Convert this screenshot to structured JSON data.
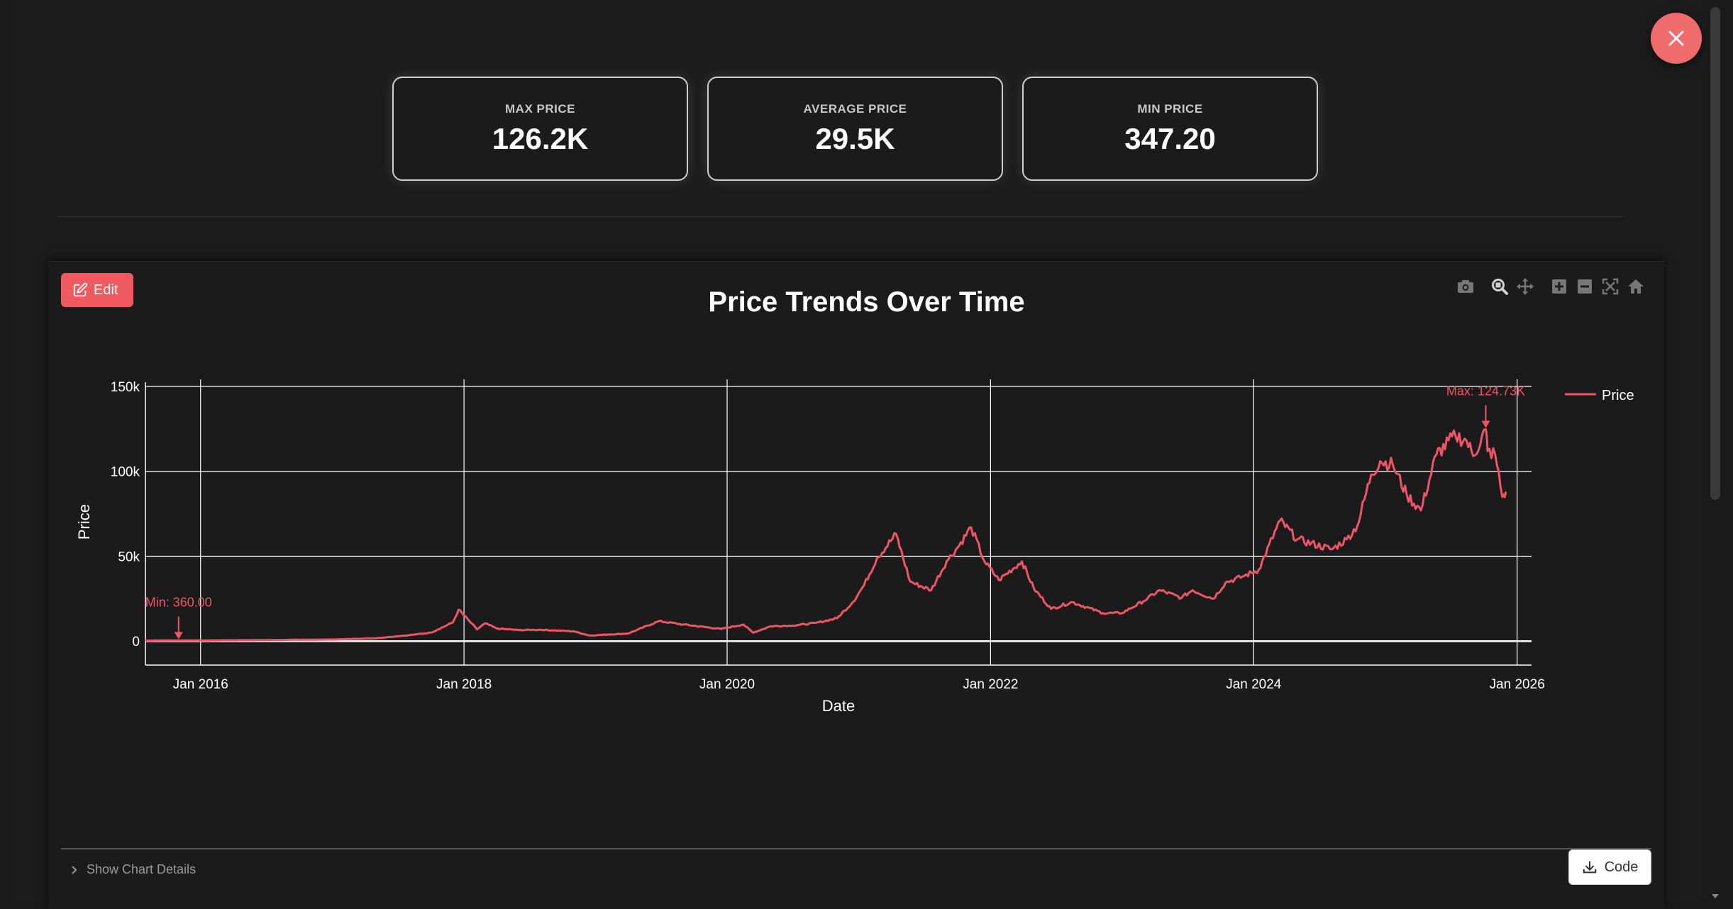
{
  "kpis": [
    {
      "label": "MAX PRICE",
      "value": "126.2K"
    },
    {
      "label": "AVERAGE PRICE",
      "value": "29.5K"
    },
    {
      "label": "MIN PRICE",
      "value": "347.20"
    }
  ],
  "edit_label": "Edit",
  "details_label": "Show Chart Details",
  "code_label": "Code",
  "icons": {
    "close": "close-icon",
    "edit": "edit-icon",
    "camera": "camera-icon",
    "zoom": "zoom-icon",
    "pan": "pan-icon",
    "zoom_in": "zoom-in-icon",
    "zoom_out": "zoom-out-icon",
    "autoscale": "autoscale-icon",
    "reset": "home-icon",
    "chevron": "chevron-right-icon",
    "download": "download-icon"
  },
  "colors": {
    "accent": "#f0595f",
    "line": "#f05468",
    "close": "#f06b6b"
  },
  "chart_data": {
    "type": "line",
    "title": "Price Trends Over Time",
    "xlabel": "Date",
    "ylabel": "Price",
    "xlim": [
      "2015-08-01",
      "2026-02-10"
    ],
    "ylim": [
      -7000,
      150000
    ],
    "x_ticks": [
      "Jan 2016",
      "Jan 2018",
      "Jan 2020",
      "Jan 2022",
      "Jan 2024",
      "Jan 2026"
    ],
    "y_ticks": [
      {
        "value": 0,
        "label": "0"
      },
      {
        "value": 50000,
        "label": "50k"
      },
      {
        "value": 100000,
        "label": "100k"
      },
      {
        "value": 150000,
        "label": "150k"
      }
    ],
    "grid": true,
    "legend_position": "top-right",
    "series": [
      {
        "name": "Price",
        "x": [
          "2015-08-01",
          "2015-10-01",
          "2016-01-01",
          "2016-06-01",
          "2017-01-01",
          "2017-05-01",
          "2017-08-01",
          "2017-10-01",
          "2017-12-01",
          "2017-12-17",
          "2018-01-15",
          "2018-02-06",
          "2018-03-01",
          "2018-04-01",
          "2018-06-01",
          "2018-08-01",
          "2018-11-01",
          "2018-12-15",
          "2019-04-01",
          "2019-06-26",
          "2019-09-01",
          "2019-12-15",
          "2020-02-15",
          "2020-03-13",
          "2020-05-01",
          "2020-07-01",
          "2020-09-01",
          "2020-11-01",
          "2020-12-15",
          "2021-01-15",
          "2021-02-20",
          "2021-04-14",
          "2021-05-23",
          "2021-07-20",
          "2021-09-01",
          "2021-10-01",
          "2021-11-08",
          "2021-12-15",
          "2022-01-24",
          "2022-03-29",
          "2022-05-01",
          "2022-06-18",
          "2022-08-15",
          "2022-11-09",
          "2022-12-31",
          "2023-03-01",
          "2023-04-15",
          "2023-06-15",
          "2023-07-15",
          "2023-09-11",
          "2023-10-15",
          "2023-12-01",
          "2024-01-15",
          "2024-03-14",
          "2024-05-01",
          "2024-08-05",
          "2024-09-15",
          "2024-10-15",
          "2024-11-22",
          "2024-12-17",
          "2025-01-21",
          "2025-03-01",
          "2025-04-09",
          "2025-05-22",
          "2025-07-14",
          "2025-08-14",
          "2025-09-01",
          "2025-10-06",
          "2025-10-11",
          "2025-11-01",
          "2025-11-21",
          "2025-12-01"
        ],
        "y": [
          360,
          400,
          430,
          600,
          950,
          1700,
          3500,
          5000,
          11000,
          18500,
          12000,
          7000,
          10500,
          7500,
          6500,
          6700,
          5800,
          3300,
          4500,
          11800,
          9800,
          7200,
          9800,
          5000,
          8800,
          9200,
          10600,
          13500,
          23000,
          33000,
          49000,
          63000,
          35000,
          30000,
          47000,
          55000,
          67000,
          47000,
          36000,
          47000,
          31000,
          19000,
          23000,
          16500,
          16500,
          23500,
          30000,
          25500,
          30000,
          25000,
          34500,
          38000,
          42000,
          71000,
          60000,
          54000,
          60000,
          68000,
          98000,
          106000,
          104000,
          86000,
          77000,
          110000,
          121000,
          118000,
          109000,
          124730,
          112000,
          110000,
          85000,
          88000
        ]
      }
    ],
    "annotations": [
      {
        "text": "Min: 360.00",
        "x": "2015-11-01",
        "y": 360
      },
      {
        "text": "Max: 124.73K",
        "x": "2025-10-06",
        "y": 124730
      }
    ]
  }
}
